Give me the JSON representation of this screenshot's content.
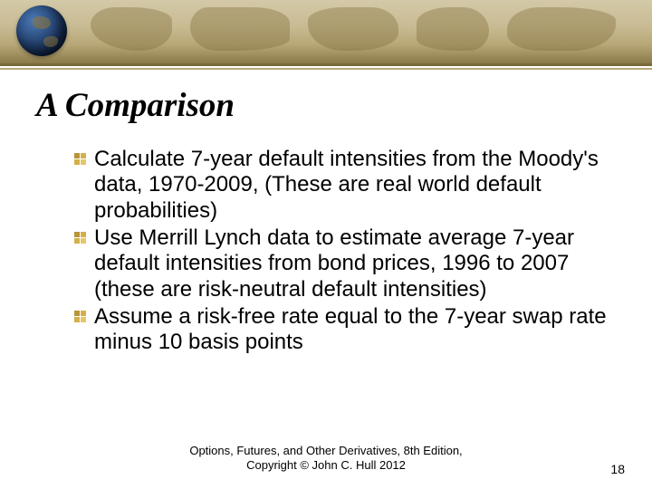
{
  "slide": {
    "title": "A Comparison",
    "bullets": [
      "Calculate 7-year default intensities from the Moody's data, 1970-2009, (These are real world default probabilities)",
      "Use Merrill Lynch data to estimate average 7-year default intensities from bond prices, 1996 to 2007 (these are risk-neutral default intensities)",
      "Assume a risk-free rate equal to the 7-year swap rate minus 10 basis points"
    ],
    "footer_line1": "Options, Futures, and Other Derivatives,  8th Edition,",
    "footer_line2": "Copyright © John  C. Hull 2012",
    "page_number": "18"
  },
  "style": {
    "title_font": "Times New Roman italic bold",
    "title_fontsize": 37,
    "body_fontsize": 24,
    "footer_fontsize": 13,
    "bullet_colors": [
      "#b8943a",
      "#d4b04a",
      "#d4b04a",
      "#e4c868"
    ],
    "header_gradient": [
      "#d4c9a8",
      "#c9bc94",
      "#b8a878",
      "#8a7a4a"
    ],
    "underline_color": "#7a6a3a",
    "background_color": "#ffffff",
    "text_color": "#000000"
  }
}
